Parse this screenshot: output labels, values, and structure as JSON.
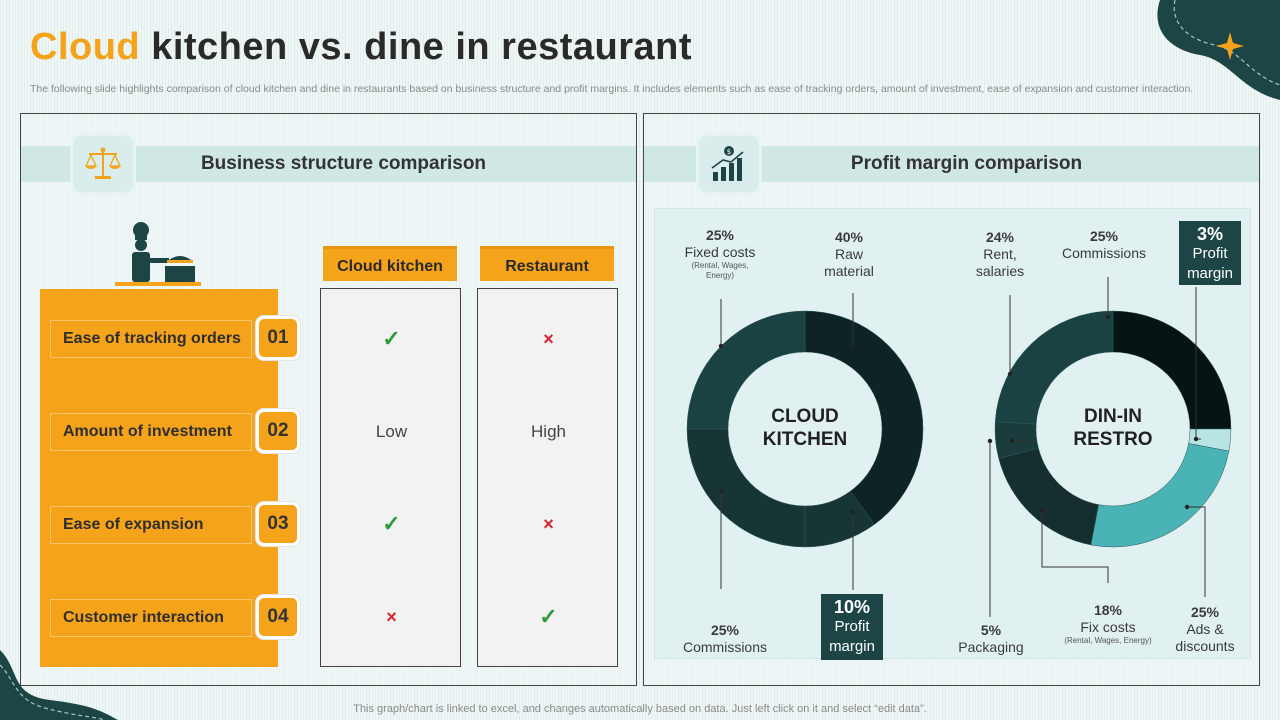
{
  "title": {
    "accent": "Cloud",
    "rest": " kitchen vs. dine in restaurant"
  },
  "subtitle": "The following slide highlights comparison of cloud kitchen and dine in restaurants based on business structure and profit margins. It includes elements such as ease of tracking orders, amount of investment, ease of expansion and customer interaction.",
  "footer": "This graph/chart is linked to excel, and changes automatically based on data. Just left click on it and select “edit data”.",
  "business": {
    "heading": "Business structure comparison",
    "columns": [
      "Cloud kitchen",
      "Restaurant"
    ],
    "rows": [
      {
        "label": "Ease of tracking orders",
        "num": "01",
        "cloud": "✓",
        "restaurant": "×",
        "cloud_type": "check",
        "restaurant_type": "cross"
      },
      {
        "label": "Amount of investment",
        "num": "02",
        "cloud": "Low",
        "restaurant": "High",
        "cloud_type": "text",
        "restaurant_type": "text"
      },
      {
        "label": "Ease of expansion",
        "num": "03",
        "cloud": "✓",
        "restaurant": "×",
        "cloud_type": "check",
        "restaurant_type": "cross"
      },
      {
        "label": "Customer interaction",
        "num": "04",
        "cloud": "×",
        "restaurant": "✓",
        "cloud_type": "cross",
        "restaurant_type": "check"
      }
    ]
  },
  "profit": {
    "heading": "Profit margin comparison"
  },
  "colors": {
    "accent": "#f5a31a",
    "dark_teal": "#1e4545",
    "check": "#2e9a3a",
    "cross": "#d9232d"
  },
  "chart_data": [
    {
      "type": "pie",
      "title": "CLOUD KITCHEN",
      "center_label": [
        "CLOUD",
        "KITCHEN"
      ],
      "slices": [
        {
          "label": "Raw material",
          "value": 40,
          "pct": "40%",
          "color": "#0e2424"
        },
        {
          "label": "Profit margin",
          "value": 10,
          "pct": "10%",
          "color": "#173535"
        },
        {
          "label": "Commissions",
          "value": 25,
          "pct": "25%",
          "color": "#173535"
        },
        {
          "label": "Fixed costs",
          "value": 25,
          "pct": "25%",
          "sub": "(Rental, Wages, Energy)",
          "color": "#1b4242"
        }
      ]
    },
    {
      "type": "pie",
      "title": "DIN-IN RESTRO",
      "center_label": [
        "DIN-IN",
        "RESTRO"
      ],
      "slices": [
        {
          "label": "Commissions",
          "value": 25,
          "pct": "25%",
          "color": "#071414"
        },
        {
          "label": "Profit margin",
          "value": 3,
          "pct": "3%",
          "color": "#b8e4e4"
        },
        {
          "label": "Ads & discounts",
          "value": 25,
          "pct": "25%",
          "color": "#4ab3b5"
        },
        {
          "label": "Fix costs",
          "value": 18,
          "pct": "18%",
          "sub": "(Rental, Wages, Energy)",
          "color": "#152f2f"
        },
        {
          "label": "Packaging",
          "value": 5,
          "pct": "5%",
          "color": "#1a3c3c"
        },
        {
          "label": "Rent, salaries",
          "value": 24,
          "pct": "24%",
          "color": "#1b4242"
        }
      ]
    }
  ]
}
